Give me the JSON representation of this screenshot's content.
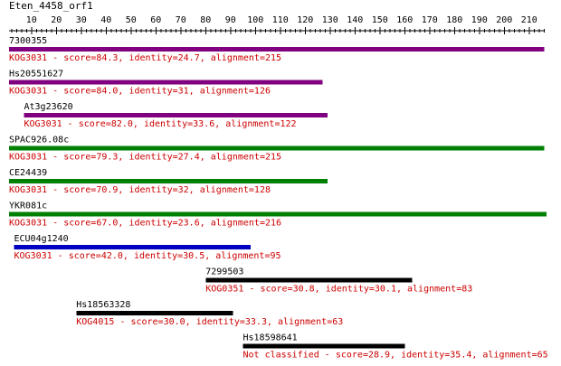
{
  "title": "Eten_4458_orf1",
  "ruler": {
    "min": 1,
    "max": 216,
    "tick_labels": [
      10,
      20,
      30,
      40,
      50,
      60,
      70,
      80,
      90,
      100,
      110,
      120,
      130,
      140,
      150,
      160,
      170,
      180,
      190,
      200,
      210
    ]
  },
  "hits": [
    {
      "name": "7300355",
      "start": 1,
      "end": 216,
      "color": "#800080",
      "label": "KOG3031 - score=84.3, identity=24.7, alignment=215"
    },
    {
      "name": "Hs20551627",
      "start": 1,
      "end": 127,
      "color": "#800080",
      "label": "KOG3031 - score=84.0, identity=31, alignment=126"
    },
    {
      "name": "At3g23620",
      "start": 7,
      "end": 129,
      "color": "#800080",
      "label": "KOG3031 - score=82.0, identity=33.6, alignment=122"
    },
    {
      "name": "SPAC926.08c",
      "start": 1,
      "end": 216,
      "color": "#008000",
      "label": "KOG3031 - score=79.3, identity=27.4, alignment=215"
    },
    {
      "name": "CE24439",
      "start": 1,
      "end": 129,
      "color": "#008000",
      "label": "KOG3031 - score=70.9, identity=32, alignment=128"
    },
    {
      "name": "YKR081c",
      "start": 1,
      "end": 217,
      "color": "#008000",
      "label": "KOG3031 - score=67.0, identity=23.6, alignment=216"
    },
    {
      "name": "ECU04g1240",
      "start": 3,
      "end": 98,
      "color": "#0000c0",
      "label": "KOG3031 - score=42.0, identity=30.5, alignment=95"
    },
    {
      "name": "7299503",
      "start": 80,
      "end": 163,
      "color": "#000000",
      "label": "KOG0351 - score=30.8, identity=30.1, alignment=83"
    },
    {
      "name": "Hs18563328",
      "start": 28,
      "end": 91,
      "color": "#000000",
      "label": "KOG4015 - score=30.0, identity=33.3, alignment=63"
    },
    {
      "name": "Hs18598641",
      "start": 95,
      "end": 160,
      "color": "#000000",
      "label": "Not classified - score=28.9, identity=35.4, alignment=65"
    }
  ]
}
